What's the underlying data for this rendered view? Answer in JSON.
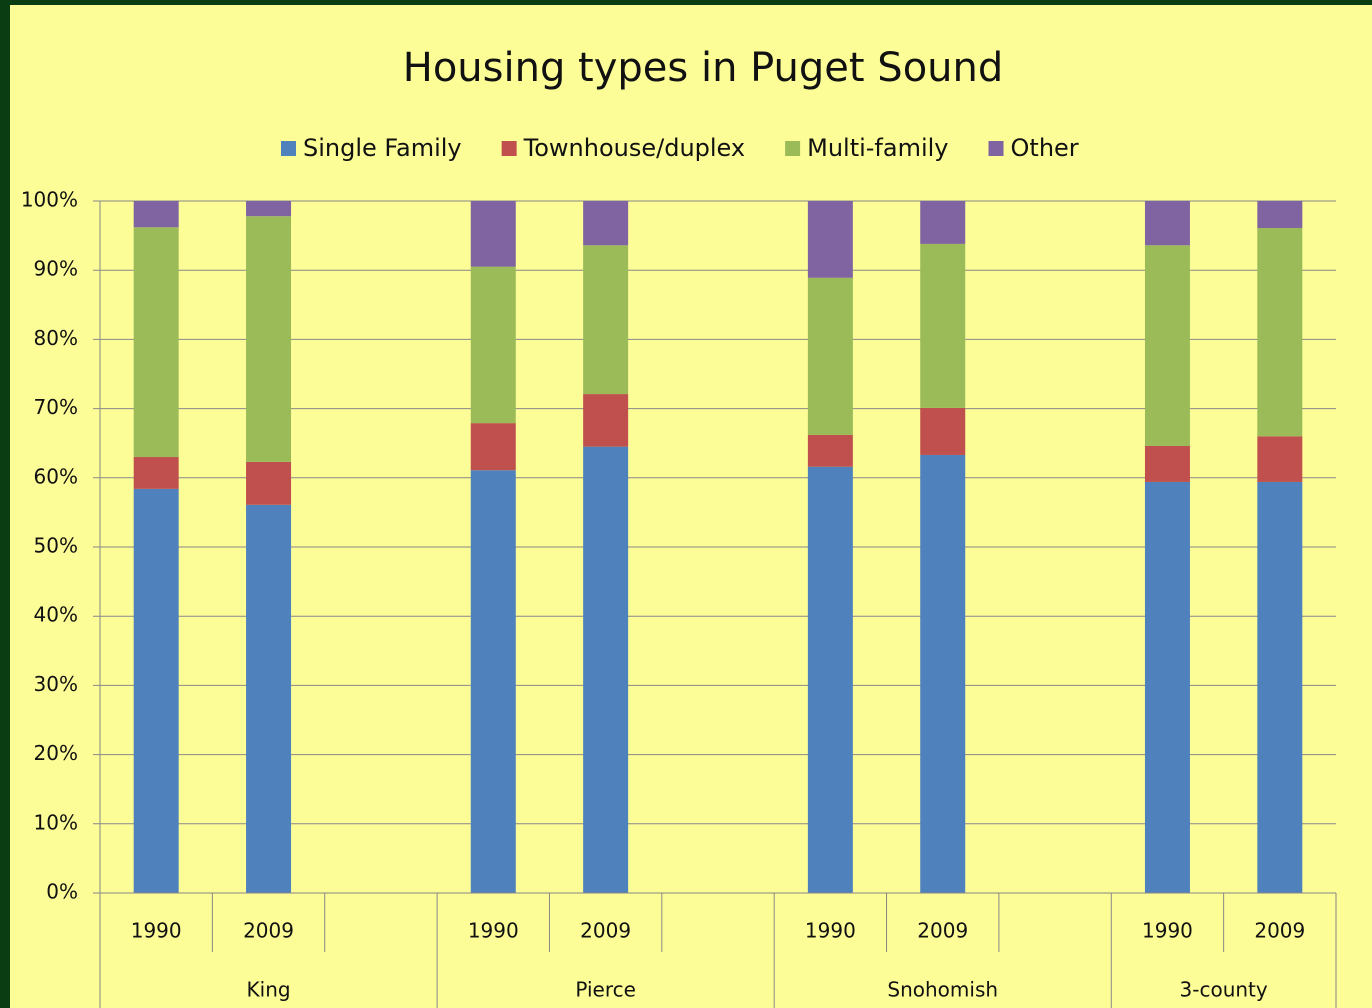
{
  "chart_data": {
    "type": "stacked_bar",
    "title": "Housing types in Puget Sound",
    "groups": [
      {
        "label": "King",
        "categories": [
          "1990",
          "2009",
          null
        ]
      },
      {
        "label": "Pierce",
        "categories": [
          "1990",
          "2009",
          null
        ]
      },
      {
        "label": "Snohomish",
        "categories": [
          "1990",
          "2009",
          null
        ]
      },
      {
        "label": "3-county",
        "categories": [
          "1990",
          "2009"
        ]
      }
    ],
    "series": [
      {
        "name": "Single Family",
        "color": "#4f81bd",
        "values": [
          58.4,
          56.1,
          null,
          61.1,
          64.5,
          null,
          61.6,
          63.3,
          null,
          59.4,
          59.4
        ]
      },
      {
        "name": "Townhouse/duplex",
        "color": "#c0504d",
        "values": [
          4.6,
          6.2,
          null,
          6.8,
          7.6,
          null,
          4.6,
          6.8,
          null,
          5.2,
          6.6
        ]
      },
      {
        "name": "Multi-family",
        "color": "#9bbb59",
        "values": [
          33.2,
          35.5,
          null,
          22.6,
          21.5,
          null,
          22.7,
          23.7,
          null,
          29.0,
          30.1
        ]
      },
      {
        "name": "Other",
        "color": "#8064a2",
        "values": [
          3.8,
          2.2,
          null,
          9.5,
          6.4,
          null,
          11.1,
          6.2,
          null,
          6.4,
          3.9
        ]
      }
    ],
    "ylim": [
      0,
      100
    ],
    "yticks": [
      {
        "value": 0,
        "label": "0%"
      },
      {
        "value": 10,
        "label": "10%"
      },
      {
        "value": 20,
        "label": "20%"
      },
      {
        "value": 30,
        "label": "30%"
      },
      {
        "value": 40,
        "label": "40%"
      },
      {
        "value": 50,
        "label": "50%"
      },
      {
        "value": 60,
        "label": "60%"
      },
      {
        "value": 70,
        "label": "70%"
      },
      {
        "value": 80,
        "label": "80%"
      },
      {
        "value": 90,
        "label": "90%"
      },
      {
        "value": 100,
        "label": "100%"
      }
    ],
    "grid": true,
    "legend": "top"
  }
}
